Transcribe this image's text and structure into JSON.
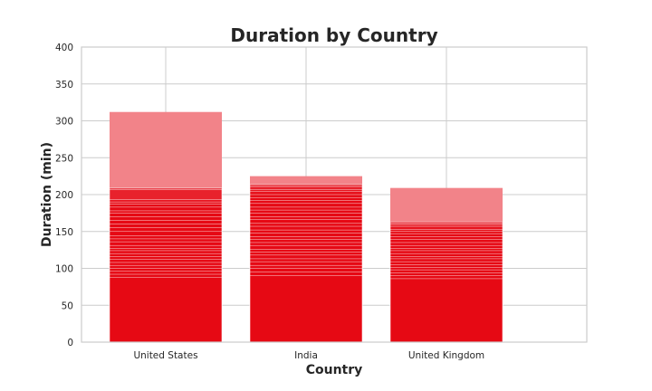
{
  "chart_data": {
    "type": "bar",
    "title": "Duration by Country",
    "xlabel": "Country",
    "ylabel": "Duration (min)",
    "ylim": [
      0,
      400
    ],
    "yticks": [
      0,
      50,
      100,
      150,
      200,
      250,
      300,
      350,
      400
    ],
    "xlim": [
      -0.6,
      3.0
    ],
    "grid": true,
    "categories": [
      "United States",
      "India",
      "United Kingdom"
    ],
    "values": [
      312,
      225,
      209
    ],
    "overlapping_bar_values": [
      [
        312,
        209,
        207,
        193,
        190,
        187,
        183,
        178,
        175,
        170,
        165,
        160,
        155,
        150,
        144,
        140,
        136,
        131,
        127,
        124,
        120,
        116,
        112,
        108,
        104,
        100,
        96,
        92,
        88
      ],
      [
        225,
        214,
        211,
        207,
        204,
        200,
        196,
        192,
        188,
        183,
        179,
        175,
        170,
        166,
        161,
        157,
        152,
        148,
        143,
        139,
        135,
        131,
        126,
        122,
        118,
        113,
        109,
        104,
        100,
        95,
        90
      ],
      [
        209,
        163,
        160,
        157,
        153,
        150,
        147,
        143,
        139,
        135,
        131,
        127,
        124,
        120,
        116,
        113,
        109,
        105,
        101,
        98,
        94,
        90,
        86
      ]
    ],
    "colors": {
      "bar": "#e50914",
      "bar_overlay": "#f28389",
      "bar_edge": "#ffffff"
    }
  }
}
